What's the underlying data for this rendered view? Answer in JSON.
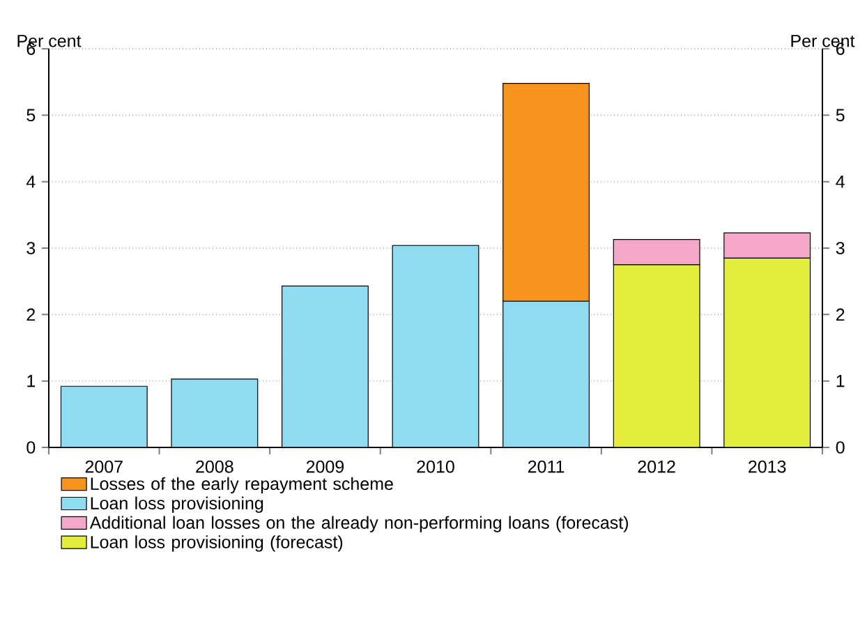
{
  "chart_data": {
    "type": "bar",
    "stacked": true,
    "ylabel": "Per cent",
    "y2label": "Per cent",
    "categories": [
      "2007",
      "2008",
      "2009",
      "2010",
      "2011",
      "2012",
      "2013"
    ],
    "series": [
      {
        "name": "Loan loss provisioning",
        "color": "#8fdcf0",
        "values": [
          0.92,
          1.03,
          2.43,
          3.04,
          2.2,
          null,
          null
        ]
      },
      {
        "name": "Loan loss provisioning (forecast)",
        "color": "#e3ee3a",
        "values": [
          null,
          null,
          null,
          null,
          null,
          2.75,
          2.85
        ]
      },
      {
        "name": "Losses of the early repayment scheme",
        "color": "#f7941d",
        "values": [
          null,
          null,
          null,
          null,
          3.28,
          null,
          null
        ]
      },
      {
        "name": "Additional loan losses on the already non-performing loans (forecast)",
        "color": "#f6a8c9",
        "values": [
          null,
          null,
          null,
          null,
          null,
          0.38,
          0.38
        ]
      }
    ],
    "ylim": [
      0,
      6
    ],
    "yticks": [
      0,
      1,
      2,
      3,
      4,
      5,
      6
    ],
    "y2lim": [
      0,
      6
    ],
    "y2ticks": [
      0,
      1,
      2,
      3,
      4,
      5,
      6
    ],
    "grid": "y",
    "legend": "bottom"
  }
}
